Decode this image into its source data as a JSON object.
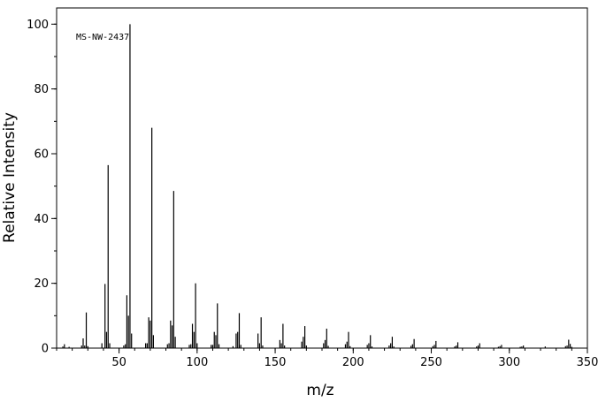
{
  "chart_data": {
    "type": "bar",
    "title": "",
    "annotation": "MS-NW-2437",
    "xlabel": "m/z",
    "ylabel": "Relative Intensity",
    "xlim": [
      10,
      350
    ],
    "ylim": [
      0,
      105
    ],
    "x_ticks": [
      50,
      100,
      150,
      200,
      250,
      300,
      350
    ],
    "y_ticks": [
      0,
      20,
      40,
      60,
      80,
      100
    ],
    "x_minor_step": 10,
    "y_minor_step": 10,
    "grid": false,
    "peaks": [
      [
        14,
        0.5
      ],
      [
        15,
        1.2
      ],
      [
        18,
        0.4
      ],
      [
        26,
        0.8
      ],
      [
        27,
        3.0
      ],
      [
        28,
        0.8
      ],
      [
        29,
        11.0
      ],
      [
        30,
        0.6
      ],
      [
        39,
        1.5
      ],
      [
        41,
        19.8
      ],
      [
        42,
        5.0
      ],
      [
        43,
        56.5
      ],
      [
        44,
        1.5
      ],
      [
        53,
        0.8
      ],
      [
        54,
        1.2
      ],
      [
        55,
        16.3
      ],
      [
        56,
        10.0
      ],
      [
        57,
        100
      ],
      [
        58,
        4.5
      ],
      [
        67,
        1.5
      ],
      [
        68,
        1.5
      ],
      [
        69,
        9.5
      ],
      [
        70,
        8.5
      ],
      [
        71,
        68.0
      ],
      [
        72,
        4.0
      ],
      [
        81,
        1.2
      ],
      [
        82,
        1.5
      ],
      [
        83,
        8.5
      ],
      [
        84,
        7.0
      ],
      [
        85,
        48.5
      ],
      [
        86,
        3.5
      ],
      [
        95,
        1.0
      ],
      [
        96,
        1.2
      ],
      [
        97,
        7.5
      ],
      [
        98,
        5.0
      ],
      [
        99,
        20.0
      ],
      [
        100,
        1.5
      ],
      [
        109,
        1.0
      ],
      [
        110,
        1.0
      ],
      [
        111,
        5.0
      ],
      [
        112,
        4.0
      ],
      [
        113,
        13.8
      ],
      [
        114,
        1.2
      ],
      [
        123,
        0.6
      ],
      [
        125,
        4.5
      ],
      [
        126,
        5.0
      ],
      [
        127,
        10.8
      ],
      [
        128,
        1.0
      ],
      [
        139,
        4.5
      ],
      [
        140,
        1.5
      ],
      [
        141,
        9.5
      ],
      [
        142,
        0.8
      ],
      [
        153,
        2.5
      ],
      [
        154,
        1.5
      ],
      [
        155,
        7.5
      ],
      [
        156,
        0.8
      ],
      [
        167,
        2.0
      ],
      [
        168,
        3.5
      ],
      [
        169,
        6.8
      ],
      [
        170,
        0.8
      ],
      [
        181,
        1.5
      ],
      [
        182,
        2.5
      ],
      [
        183,
        6.0
      ],
      [
        184,
        0.7
      ],
      [
        195,
        1.2
      ],
      [
        196,
        2.0
      ],
      [
        197,
        5.0
      ],
      [
        198,
        0.6
      ],
      [
        209,
        1.0
      ],
      [
        210,
        1.5
      ],
      [
        211,
        4.0
      ],
      [
        212,
        0.5
      ],
      [
        223,
        0.8
      ],
      [
        224,
        1.5
      ],
      [
        225,
        3.5
      ],
      [
        226,
        0.5
      ],
      [
        237,
        0.7
      ],
      [
        238,
        1.2
      ],
      [
        239,
        2.8
      ],
      [
        251,
        0.6
      ],
      [
        252,
        1.0
      ],
      [
        253,
        2.2
      ],
      [
        265,
        0.5
      ],
      [
        266,
        0.8
      ],
      [
        267,
        1.8
      ],
      [
        279,
        0.5
      ],
      [
        280,
        0.8
      ],
      [
        281,
        1.5
      ],
      [
        293,
        0.4
      ],
      [
        294,
        0.6
      ],
      [
        295,
        1.0
      ],
      [
        307,
        0.4
      ],
      [
        308,
        0.5
      ],
      [
        309,
        0.8
      ],
      [
        323,
        0.5
      ],
      [
        336,
        0.6
      ],
      [
        337,
        0.8
      ],
      [
        338,
        2.6
      ],
      [
        339,
        1.3
      ],
      [
        340,
        0.4
      ]
    ]
  }
}
